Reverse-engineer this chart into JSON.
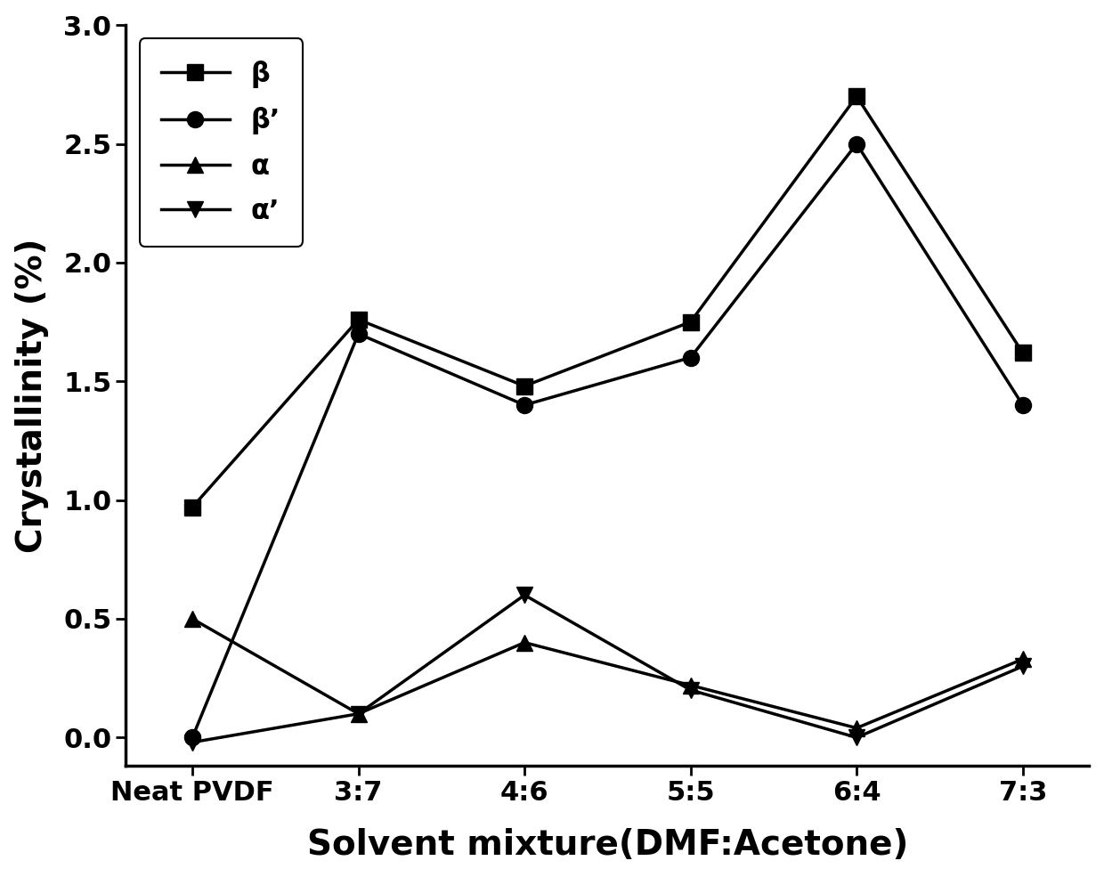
{
  "x_labels": [
    "Neat PVDF",
    "3:7",
    "4:6",
    "5:5",
    "6:4",
    "7:3"
  ],
  "x_positions": [
    0,
    1,
    2,
    3,
    4,
    5
  ],
  "beta": [
    0.97,
    1.76,
    1.48,
    1.75,
    2.7,
    1.62
  ],
  "beta_prime": [
    0.0,
    1.7,
    1.4,
    1.6,
    2.5,
    1.4
  ],
  "alpha": [
    0.5,
    0.1,
    0.4,
    0.22,
    0.04,
    0.33
  ],
  "alpha_prime": [
    -0.02,
    0.1,
    0.6,
    0.2,
    0.0,
    0.3
  ],
  "ylabel": "Crystallinity (%)",
  "xlabel": "Solvent mixture(DMF:Acetone)",
  "ylim": [
    -0.12,
    3.0
  ],
  "yticks": [
    0.0,
    0.5,
    1.0,
    1.5,
    2.0,
    2.5,
    3.0
  ],
  "line_color": "#000000",
  "legend_labels": [
    "β",
    "β’",
    "α",
    "α’"
  ],
  "markers": [
    "s",
    "o",
    "^",
    "v"
  ],
  "linewidth": 2.5,
  "markersize": 13,
  "label_fontsize": 28,
  "tick_fontsize": 22,
  "legend_fontsize": 22,
  "background_color": "#ffffff"
}
